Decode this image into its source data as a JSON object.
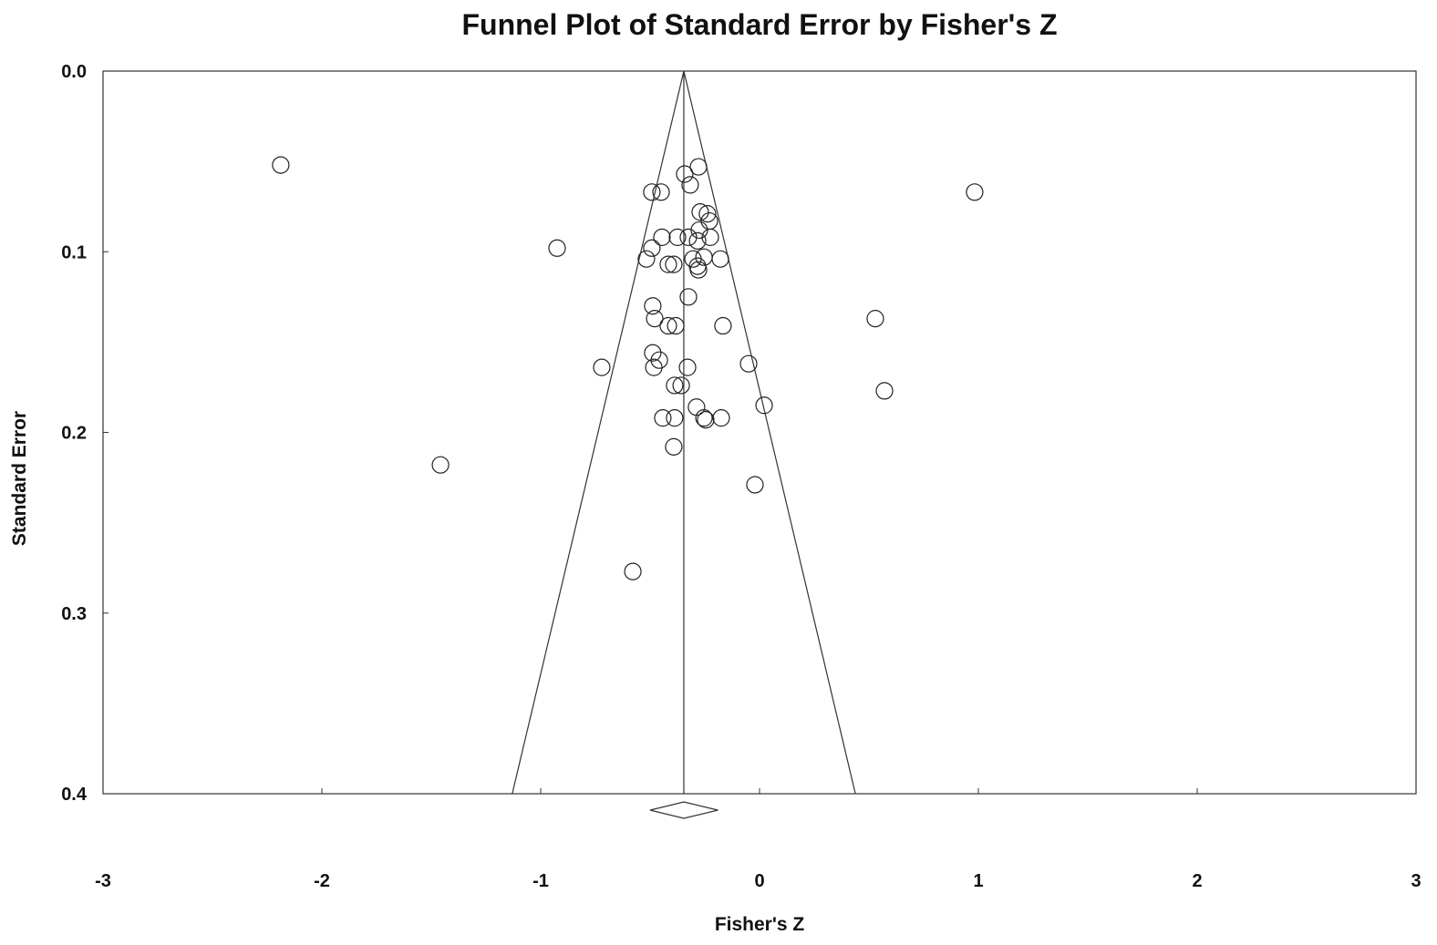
{
  "chart_data": {
    "type": "funnel",
    "title": "Funnel Plot of Standard Error by Fisher's Z",
    "x_label": "Fisher's Z",
    "y_label": "Standard Error",
    "xlim": [
      -3,
      3
    ],
    "xticks": [
      -3,
      -2,
      -1,
      0,
      1,
      2,
      3
    ],
    "ylim": [
      0,
      0.4
    ],
    "y_inverted": true,
    "yticks": [
      {
        "value": 0,
        "label": "0.0"
      },
      0.1,
      0.2,
      0.3,
      0.4
    ],
    "summary": {
      "estimate": -0.346,
      "ci_lower": -0.5,
      "ci_upper": -0.19
    },
    "funnel_multiplier": 1.96,
    "x": [
      -2.188,
      0.983,
      -0.925,
      -1.458,
      -0.721,
      -0.579,
      -0.342,
      -0.279,
      -0.317,
      -0.492,
      -0.45,
      -0.271,
      -0.238,
      -0.229,
      -0.275,
      -0.446,
      -0.375,
      -0.325,
      -0.283,
      -0.225,
      -0.492,
      -0.517,
      -0.417,
      -0.392,
      -0.304,
      -0.254,
      -0.179,
      -0.283,
      -0.279,
      -0.325,
      -0.488,
      -0.479,
      0.529,
      -0.417,
      -0.383,
      -0.167,
      -0.488,
      -0.458,
      -0.483,
      -0.329,
      -0.05,
      -0.388,
      -0.358,
      0.571,
      -0.288,
      0.021,
      -0.442,
      -0.388,
      -0.254,
      -0.246,
      -0.175,
      -0.392,
      -0.021
    ],
    "values": [
      0.052,
      0.067,
      0.098,
      0.218,
      0.164,
      0.277,
      0.057,
      0.053,
      0.063,
      0.067,
      0.067,
      0.078,
      0.079,
      0.083,
      0.088,
      0.092,
      0.092,
      0.092,
      0.094,
      0.092,
      0.098,
      0.104,
      0.107,
      0.107,
      0.104,
      0.103,
      0.104,
      0.108,
      0.11,
      0.125,
      0.13,
      0.137,
      0.137,
      0.141,
      0.141,
      0.141,
      0.156,
      0.16,
      0.164,
      0.164,
      0.162,
      0.174,
      0.174,
      0.177,
      0.186,
      0.185,
      0.192,
      0.192,
      0.192,
      0.193,
      0.192,
      0.208,
      0.229
    ]
  }
}
